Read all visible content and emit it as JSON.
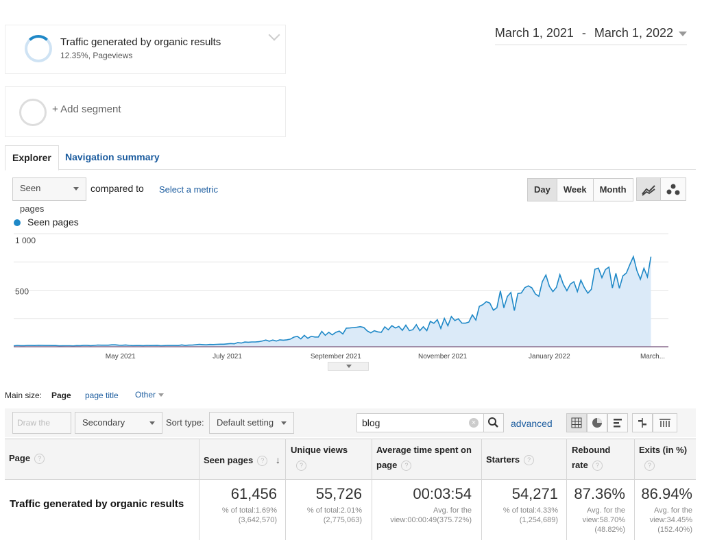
{
  "segments": {
    "primary": {
      "title": "Traffic generated by organic results",
      "subtitle": "12.35%, Pageviews"
    },
    "add": {
      "label": "+ Add segment"
    }
  },
  "date_range": {
    "start": "March 1, 2021",
    "separator": "-",
    "end": "March 1, 2022"
  },
  "tabs": [
    {
      "label": "Explorer",
      "active": true
    },
    {
      "label": "Navigation summary",
      "active": false
    }
  ],
  "controls": {
    "metric_select": "Seen pages",
    "compared_to": "compared to",
    "select_metric": "Select a metric",
    "granularity": [
      "Day",
      "Week",
      "Month"
    ],
    "granularity_selected": "Day"
  },
  "chart_data": {
    "type": "area",
    "series_name": "Seen pages",
    "color": "#1e88c7",
    "fill": "#dbeaf8",
    "ylim": [
      0,
      1000
    ],
    "yticks": [
      "1 000",
      "500"
    ],
    "x_tick_labels": [
      "May 2021",
      "July 2021",
      "September 2021",
      "November 2021",
      "January 2022",
      "March..."
    ],
    "x": [
      "2021-03-01",
      "2021-03-15",
      "2021-04-01",
      "2021-04-15",
      "2021-05-01",
      "2021-05-15",
      "2021-06-01",
      "2021-06-15",
      "2021-07-01",
      "2021-07-15",
      "2021-08-01",
      "2021-08-15",
      "2021-09-01",
      "2021-09-15",
      "2021-10-01",
      "2021-10-15",
      "2021-11-01",
      "2021-11-15",
      "2021-12-01",
      "2021-12-15",
      "2022-01-01",
      "2022-01-15",
      "2022-02-01",
      "2022-02-15",
      "2022-03-01"
    ],
    "values": [
      10,
      12,
      8,
      12,
      15,
      10,
      12,
      18,
      25,
      40,
      60,
      90,
      130,
      150,
      170,
      160,
      210,
      240,
      420,
      400,
      560,
      520,
      580,
      640,
      750
    ]
  },
  "dimension_bar": {
    "label": "Main size:",
    "active": "Page",
    "options": [
      "page title",
      "Other"
    ]
  },
  "table_toolbar": {
    "draw_lines": "Draw the lines",
    "secondary_size": "Secondary size",
    "sort_type_label": "Sort type:",
    "sort_value": "Default setting",
    "search_value": "blog",
    "advanced": "advanced"
  },
  "table": {
    "headers": {
      "page": "Page",
      "seen_pages": "Seen pages",
      "unique_views": "Unique views",
      "avg_time_1": "Average time spent on",
      "avg_time_2": "page",
      "starters": "Starters",
      "rebound_1": "Rebound",
      "rebound_2": "rate",
      "exits": "Exits (in %)"
    },
    "row": {
      "label": "Traffic generated by organic results",
      "seen_pages": {
        "value": "61,456",
        "sub1": "% of total:1.69%",
        "sub2": "(3,642,570)"
      },
      "unique_views": {
        "value": "55,726",
        "sub1": "% of total:2.01%",
        "sub2": "(2,775,063)"
      },
      "avg_time": {
        "value": "00:03:54",
        "sub1": "Avg. for the",
        "sub2": "view:00:00:49(375.72%)"
      },
      "starters": {
        "value": "54,271",
        "sub1": "% of total:4.33%",
        "sub2": "(1,254,689)"
      },
      "rebound": {
        "value": "87.36%",
        "sub1": "Avg. for the",
        "sub2": "view:58.70%",
        "sub3": "(48.82%)"
      },
      "exits": {
        "value": "86.94%",
        "sub1": "Avg. for the",
        "sub2": "view:34.45%",
        "sub3": "(152.40%)"
      }
    }
  },
  "help_glyph": "?"
}
